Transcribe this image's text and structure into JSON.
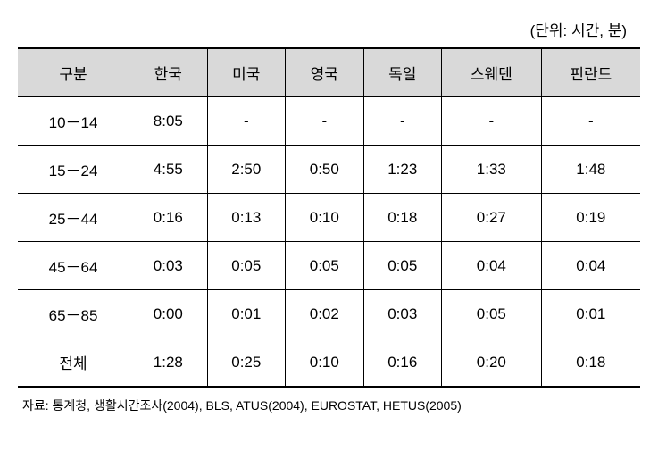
{
  "unit_label": "(단위: 시간, 분)",
  "table": {
    "columns": [
      "구분",
      "한국",
      "미국",
      "영국",
      "독일",
      "스웨덴",
      "핀란드"
    ],
    "rows": [
      [
        "10－14",
        "8:05",
        "-",
        "-",
        "-",
        "-",
        "-"
      ],
      [
        "15－24",
        "4:55",
        "2:50",
        "0:50",
        "1:23",
        "1:33",
        "1:48"
      ],
      [
        "25－44",
        "0:16",
        "0:13",
        "0:10",
        "0:18",
        "0:27",
        "0:19"
      ],
      [
        "45－64",
        "0:03",
        "0:05",
        "0:05",
        "0:05",
        "0:04",
        "0:04"
      ],
      [
        "65－85",
        "0:00",
        "0:01",
        "0:02",
        "0:03",
        "0:05",
        "0:01"
      ],
      [
        "전체",
        "1:28",
        "0:25",
        "0:10",
        "0:16",
        "0:20",
        "0:18"
      ]
    ],
    "header_bg_color": "#d9d9d9",
    "border_color": "#000000",
    "background_color": "#ffffff",
    "font_size": 17,
    "cell_padding": "14px 8px"
  },
  "source": "자료: 통계청, 생활시간조사(2004), BLS, ATUS(2004), EUROSTAT, HETUS(2005)"
}
